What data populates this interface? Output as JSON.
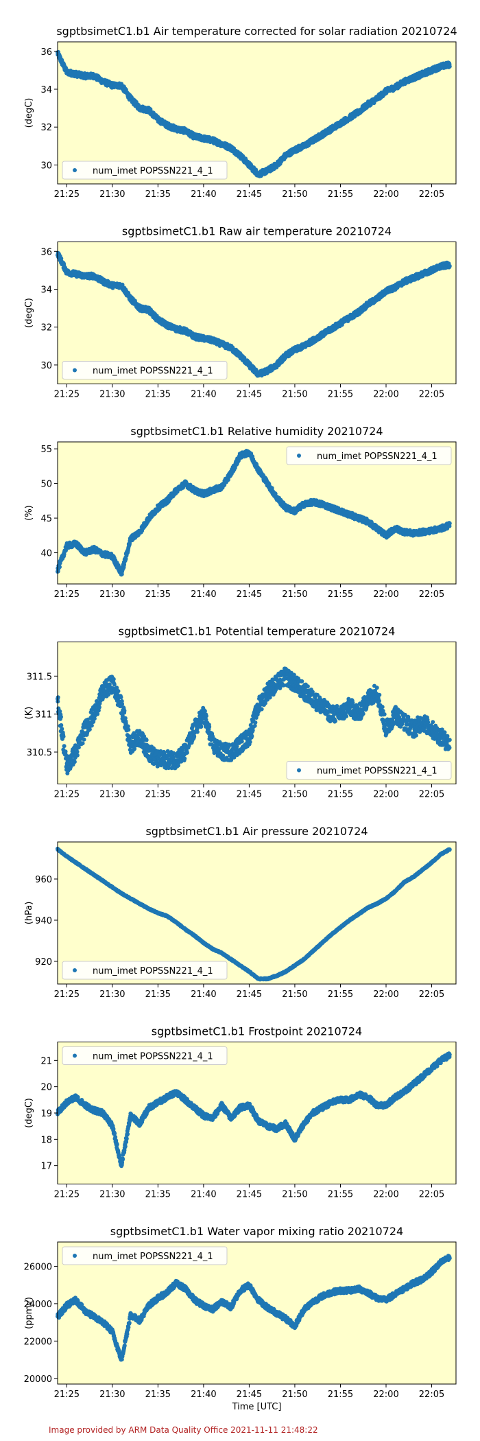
{
  "figure": {
    "footer": "Image provided by ARM Data Quality Office 2021-11-11 21:48:22",
    "x_axis_label": "Time [UTC]",
    "x_ticks": [
      "21:25",
      "21:30",
      "21:35",
      "21:40",
      "21:45",
      "21:50",
      "21:55",
      "22:00",
      "22:05"
    ],
    "plot_background": "#ffffcc",
    "series_color": "#1f77b4"
  },
  "chart_data": [
    {
      "type": "scatter",
      "title": "sgptbsimetC1.b1 Air temperature corrected for solar radiation 20210724",
      "ylabel": "(degC)",
      "xlabel": "",
      "xlim": [
        "21:24",
        "22:07:40"
      ],
      "ylim": [
        29.0,
        36.5
      ],
      "yticks": [
        30,
        32,
        34,
        36
      ],
      "legend": "bottom-left",
      "series": [
        {
          "name": "num_imet POPSSN221_4_1",
          "x": [
            "21:24",
            "21:25",
            "21:26",
            "21:27",
            "21:28",
            "21:29",
            "21:30",
            "21:31",
            "21:32",
            "21:33",
            "21:34",
            "21:35",
            "21:36",
            "21:37",
            "21:38",
            "21:39",
            "21:40",
            "21:41",
            "21:42",
            "21:43",
            "21:44",
            "21:45",
            "21:46",
            "21:47",
            "21:48",
            "21:49",
            "21:50",
            "21:51",
            "21:52",
            "21:53",
            "21:54",
            "21:55",
            "21:56",
            "21:57",
            "21:58",
            "21:59",
            "22:00",
            "22:01",
            "22:02",
            "22:03",
            "22:04",
            "22:05",
            "22:06",
            "22:07"
          ],
          "y": [
            35.9,
            34.9,
            34.8,
            34.7,
            34.7,
            34.4,
            34.2,
            34.2,
            33.5,
            33.0,
            32.9,
            32.4,
            32.1,
            31.9,
            31.8,
            31.5,
            31.4,
            31.3,
            31.1,
            30.9,
            30.5,
            30.0,
            29.5,
            29.7,
            30.0,
            30.5,
            30.8,
            31.0,
            31.3,
            31.6,
            31.9,
            32.2,
            32.5,
            32.8,
            33.2,
            33.5,
            33.9,
            34.1,
            34.4,
            34.6,
            34.8,
            35.0,
            35.2,
            35.3
          ]
        }
      ]
    },
    {
      "type": "scatter",
      "title": "sgptbsimetC1.b1 Raw air temperature 20210724",
      "ylabel": "(degC)",
      "xlabel": "",
      "xlim": [
        "21:24",
        "22:07:40"
      ],
      "ylim": [
        29.0,
        36.5
      ],
      "yticks": [
        30,
        32,
        34,
        36
      ],
      "legend": "bottom-left",
      "series": [
        {
          "name": "num_imet POPSSN221_4_1",
          "x": [
            "21:24",
            "21:25",
            "21:26",
            "21:27",
            "21:28",
            "21:29",
            "21:30",
            "21:31",
            "21:32",
            "21:33",
            "21:34",
            "21:35",
            "21:36",
            "21:37",
            "21:38",
            "21:39",
            "21:40",
            "21:41",
            "21:42",
            "21:43",
            "21:44",
            "21:45",
            "21:46",
            "21:47",
            "21:48",
            "21:49",
            "21:50",
            "21:51",
            "21:52",
            "21:53",
            "21:54",
            "21:55",
            "21:56",
            "21:57",
            "21:58",
            "21:59",
            "22:00",
            "22:01",
            "22:02",
            "22:03",
            "22:04",
            "22:05",
            "22:06",
            "22:07"
          ],
          "y": [
            35.9,
            34.9,
            34.8,
            34.7,
            34.7,
            34.4,
            34.2,
            34.2,
            33.5,
            33.0,
            32.9,
            32.4,
            32.1,
            31.9,
            31.8,
            31.5,
            31.4,
            31.3,
            31.1,
            30.9,
            30.5,
            30.0,
            29.5,
            29.7,
            30.0,
            30.5,
            30.8,
            31.0,
            31.3,
            31.6,
            31.9,
            32.2,
            32.5,
            32.8,
            33.2,
            33.5,
            33.9,
            34.1,
            34.4,
            34.6,
            34.8,
            35.0,
            35.2,
            35.3
          ]
        }
      ]
    },
    {
      "type": "scatter",
      "title": "sgptbsimetC1.b1 Relative humidity 20210724",
      "ylabel": "(%)",
      "xlabel": "",
      "xlim": [
        "21:24",
        "22:07:40"
      ],
      "ylim": [
        35.5,
        56.0
      ],
      "yticks": [
        40,
        45,
        50,
        55
      ],
      "legend": "top-right",
      "series": [
        {
          "name": "num_imet POPSSN221_4_1",
          "x": [
            "21:24",
            "21:25",
            "21:26",
            "21:27",
            "21:28",
            "21:29",
            "21:30",
            "21:31",
            "21:32",
            "21:33",
            "21:34",
            "21:35",
            "21:36",
            "21:37",
            "21:38",
            "21:39",
            "21:40",
            "21:41",
            "21:42",
            "21:43",
            "21:44",
            "21:45",
            "21:46",
            "21:47",
            "21:48",
            "21:49",
            "21:50",
            "21:51",
            "21:52",
            "21:53",
            "21:54",
            "21:55",
            "21:56",
            "21:57",
            "21:58",
            "21:59",
            "22:00",
            "22:01",
            "22:02",
            "22:03",
            "22:04",
            "22:05",
            "22:06",
            "22:07"
          ],
          "y": [
            37.5,
            41.0,
            41.3,
            40.0,
            40.5,
            39.8,
            39.5,
            37.0,
            42.0,
            43.0,
            45.0,
            46.5,
            47.5,
            49.0,
            50.0,
            49.0,
            48.5,
            49.0,
            49.5,
            51.5,
            54.0,
            54.5,
            52.0,
            50.0,
            48.0,
            46.5,
            46.0,
            47.0,
            47.3,
            47.0,
            46.5,
            46.0,
            45.5,
            45.0,
            44.5,
            43.5,
            42.5,
            43.5,
            43.0,
            42.8,
            43.0,
            43.2,
            43.5,
            44.0
          ]
        }
      ]
    },
    {
      "type": "scatter",
      "title": "sgptbsimetC1.b1 Potential temperature 20210724",
      "ylabel": "(K)",
      "xlabel": "",
      "xlim": [
        "21:24",
        "22:07:40"
      ],
      "ylim": [
        310.08,
        311.95
      ],
      "yticks": [
        310.5,
        311.0,
        311.5
      ],
      "legend": "bottom-right",
      "series": [
        {
          "name": "num_imet POPSSN221_4_1",
          "x": [
            "21:24",
            "21:25",
            "21:26",
            "21:27",
            "21:28",
            "21:29",
            "21:30",
            "21:31",
            "21:32",
            "21:33",
            "21:34",
            "21:35",
            "21:36",
            "21:37",
            "21:38",
            "21:39",
            "21:40",
            "21:41",
            "21:42",
            "21:43",
            "21:44",
            "21:45",
            "21:46",
            "21:47",
            "21:48",
            "21:49",
            "21:50",
            "21:51",
            "21:52",
            "21:53",
            "21:54",
            "21:55",
            "21:56",
            "21:57",
            "21:58",
            "21:59",
            "22:00",
            "22:01",
            "22:02",
            "22:03",
            "22:04",
            "22:05",
            "22:06",
            "22:07"
          ],
          "y": [
            311.2,
            310.3,
            310.5,
            310.8,
            311.0,
            311.3,
            311.4,
            311.1,
            310.6,
            310.7,
            310.5,
            310.4,
            310.4,
            310.4,
            310.5,
            310.8,
            311.0,
            310.6,
            310.5,
            310.5,
            310.6,
            310.7,
            311.1,
            311.3,
            311.4,
            311.5,
            311.4,
            311.3,
            311.2,
            311.1,
            311.0,
            311.0,
            311.1,
            311.0,
            311.2,
            311.3,
            310.8,
            311.0,
            310.9,
            310.8,
            310.9,
            310.8,
            310.7,
            310.6
          ]
        }
      ]
    },
    {
      "type": "scatter",
      "title": "sgptbsimetC1.b1 Air pressure 20210724",
      "ylabel": "(hPa)",
      "xlabel": "",
      "xlim": [
        "21:24",
        "22:07:40"
      ],
      "ylim": [
        909,
        978
      ],
      "yticks": [
        920,
        940,
        960
      ],
      "legend": "bottom-left",
      "series": [
        {
          "name": "num_imet POPSSN221_4_1",
          "x": [
            "21:24",
            "21:25",
            "21:26",
            "21:27",
            "21:28",
            "21:29",
            "21:30",
            "21:31",
            "21:32",
            "21:33",
            "21:34",
            "21:35",
            "21:36",
            "21:37",
            "21:38",
            "21:39",
            "21:40",
            "21:41",
            "21:42",
            "21:43",
            "21:44",
            "21:45",
            "21:46",
            "21:47",
            "21:48",
            "21:49",
            "21:50",
            "21:51",
            "21:52",
            "21:53",
            "21:54",
            "21:55",
            "21:56",
            "21:57",
            "21:58",
            "21:59",
            "22:00",
            "22:01",
            "22:02",
            "22:03",
            "22:04",
            "22:05",
            "22:06",
            "22:07"
          ],
          "y": [
            974.5,
            971.0,
            968.0,
            965.0,
            962.0,
            959.0,
            956.0,
            953.0,
            950.5,
            948.0,
            945.5,
            943.5,
            942.0,
            939.0,
            935.5,
            932.5,
            929.0,
            926.0,
            924.0,
            921.0,
            918.0,
            915.0,
            911.5,
            911.5,
            913.0,
            915.0,
            918.0,
            921.0,
            925.0,
            929.0,
            933.0,
            936.5,
            940.0,
            943.0,
            946.0,
            948.0,
            950.5,
            954.0,
            958.5,
            961.0,
            964.5,
            968.0,
            972.0,
            974.5
          ]
        }
      ]
    },
    {
      "type": "scatter",
      "title": "sgptbsimetC1.b1 Frostpoint 20210724",
      "ylabel": "(degC)",
      "xlabel": "",
      "xlim": [
        "21:24",
        "22:07:40"
      ],
      "ylim": [
        16.3,
        21.7
      ],
      "yticks": [
        17,
        18,
        19,
        20,
        21
      ],
      "legend": "top-left",
      "series": [
        {
          "name": "num_imet POPSSN221_4_1",
          "x": [
            "21:24",
            "21:25",
            "21:26",
            "21:27",
            "21:28",
            "21:29",
            "21:30",
            "21:31",
            "21:32",
            "21:33",
            "21:34",
            "21:35",
            "21:36",
            "21:37",
            "21:38",
            "21:39",
            "21:40",
            "21:41",
            "21:42",
            "21:43",
            "21:44",
            "21:45",
            "21:46",
            "21:47",
            "21:48",
            "21:49",
            "21:50",
            "21:51",
            "21:52",
            "21:53",
            "21:54",
            "21:55",
            "21:56",
            "21:57",
            "21:58",
            "21:59",
            "22:00",
            "22:01",
            "22:02",
            "22:03",
            "22:04",
            "22:05",
            "22:06",
            "22:07"
          ],
          "y": [
            19.0,
            19.4,
            19.6,
            19.3,
            19.1,
            19.0,
            18.5,
            17.0,
            18.9,
            18.6,
            19.2,
            19.4,
            19.6,
            19.8,
            19.5,
            19.2,
            18.9,
            18.8,
            19.3,
            18.8,
            19.2,
            19.3,
            18.7,
            18.5,
            18.4,
            18.6,
            18.0,
            18.6,
            19.0,
            19.2,
            19.4,
            19.5,
            19.5,
            19.7,
            19.6,
            19.3,
            19.3,
            19.6,
            19.8,
            20.1,
            20.4,
            20.7,
            21.0,
            21.2
          ]
        }
      ]
    },
    {
      "type": "scatter",
      "title": "sgptbsimetC1.b1 Water vapor mixing ratio 20210724",
      "ylabel": "(ppmv)",
      "xlabel": "Time [UTC]",
      "xlim": [
        "21:24",
        "22:07:40"
      ],
      "ylim": [
        19700,
        27300
      ],
      "yticks": [
        20000,
        22000,
        24000,
        26000
      ],
      "legend": "top-left",
      "series": [
        {
          "name": "num_imet POPSSN221_4_1",
          "x": [
            "21:24",
            "21:25",
            "21:26",
            "21:27",
            "21:28",
            "21:29",
            "21:30",
            "21:31",
            "21:32",
            "21:33",
            "21:34",
            "21:35",
            "21:36",
            "21:37",
            "21:38",
            "21:39",
            "21:40",
            "21:41",
            "21:42",
            "21:43",
            "21:44",
            "21:45",
            "21:46",
            "21:47",
            "21:48",
            "21:49",
            "21:50",
            "21:51",
            "21:52",
            "21:53",
            "21:54",
            "21:55",
            "21:56",
            "21:57",
            "21:58",
            "21:59",
            "22:00",
            "22:01",
            "22:02",
            "22:03",
            "22:04",
            "22:05",
            "22:06",
            "22:07"
          ],
          "y": [
            23300,
            23900,
            24200,
            23600,
            23300,
            23000,
            22500,
            21000,
            23400,
            23100,
            23900,
            24300,
            24600,
            25100,
            24800,
            24200,
            23900,
            23700,
            24100,
            23800,
            24700,
            25000,
            24200,
            23800,
            23500,
            23200,
            22800,
            23700,
            24100,
            24400,
            24600,
            24700,
            24700,
            24800,
            24600,
            24300,
            24200,
            24500,
            24800,
            25100,
            25300,
            25700,
            26200,
            26500
          ]
        }
      ]
    }
  ]
}
